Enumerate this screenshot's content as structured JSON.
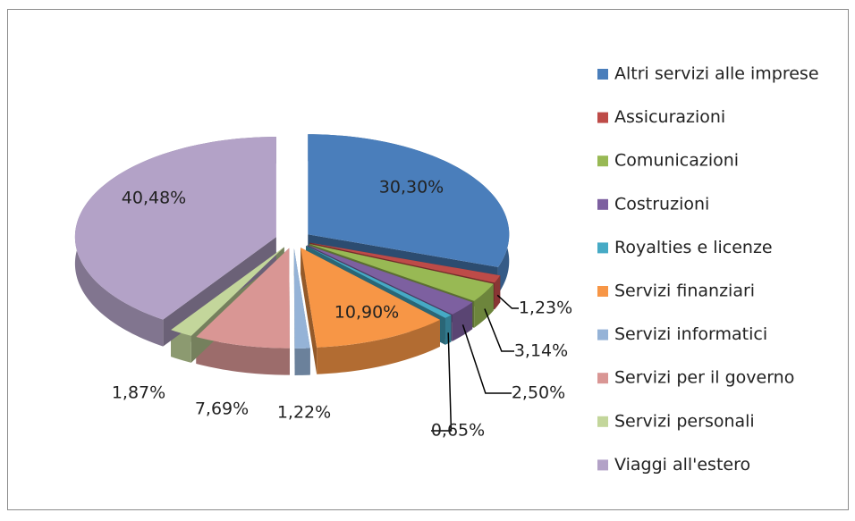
{
  "chart_data": {
    "type": "pie",
    "categories": [
      "Altri servizi alle imprese",
      "Assicurazioni",
      "Comunicazioni",
      "Costruzioni",
      "Royalties e licenze",
      "Servizi finanziari",
      "Servizi informatici",
      "Servizi per il governo",
      "Servizi personali",
      "Viaggi all'estero"
    ],
    "values": [
      30.3,
      1.23,
      3.14,
      2.5,
      0.65,
      10.9,
      1.22,
      7.69,
      1.87,
      40.48
    ],
    "value_labels": [
      "30,30%",
      "1,23%",
      "3,14%",
      "2,50%",
      "0,65%",
      "10,90%",
      "1,22%",
      "7,69%",
      "1,87%",
      "40,48%"
    ],
    "colors": [
      "#4a7ebb",
      "#be4b48",
      "#98b954",
      "#7d60a0",
      "#46aac5",
      "#f79646",
      "#95b3d7",
      "#d99694",
      "#c3d69b",
      "#b3a2c7"
    ],
    "legend": "right"
  }
}
